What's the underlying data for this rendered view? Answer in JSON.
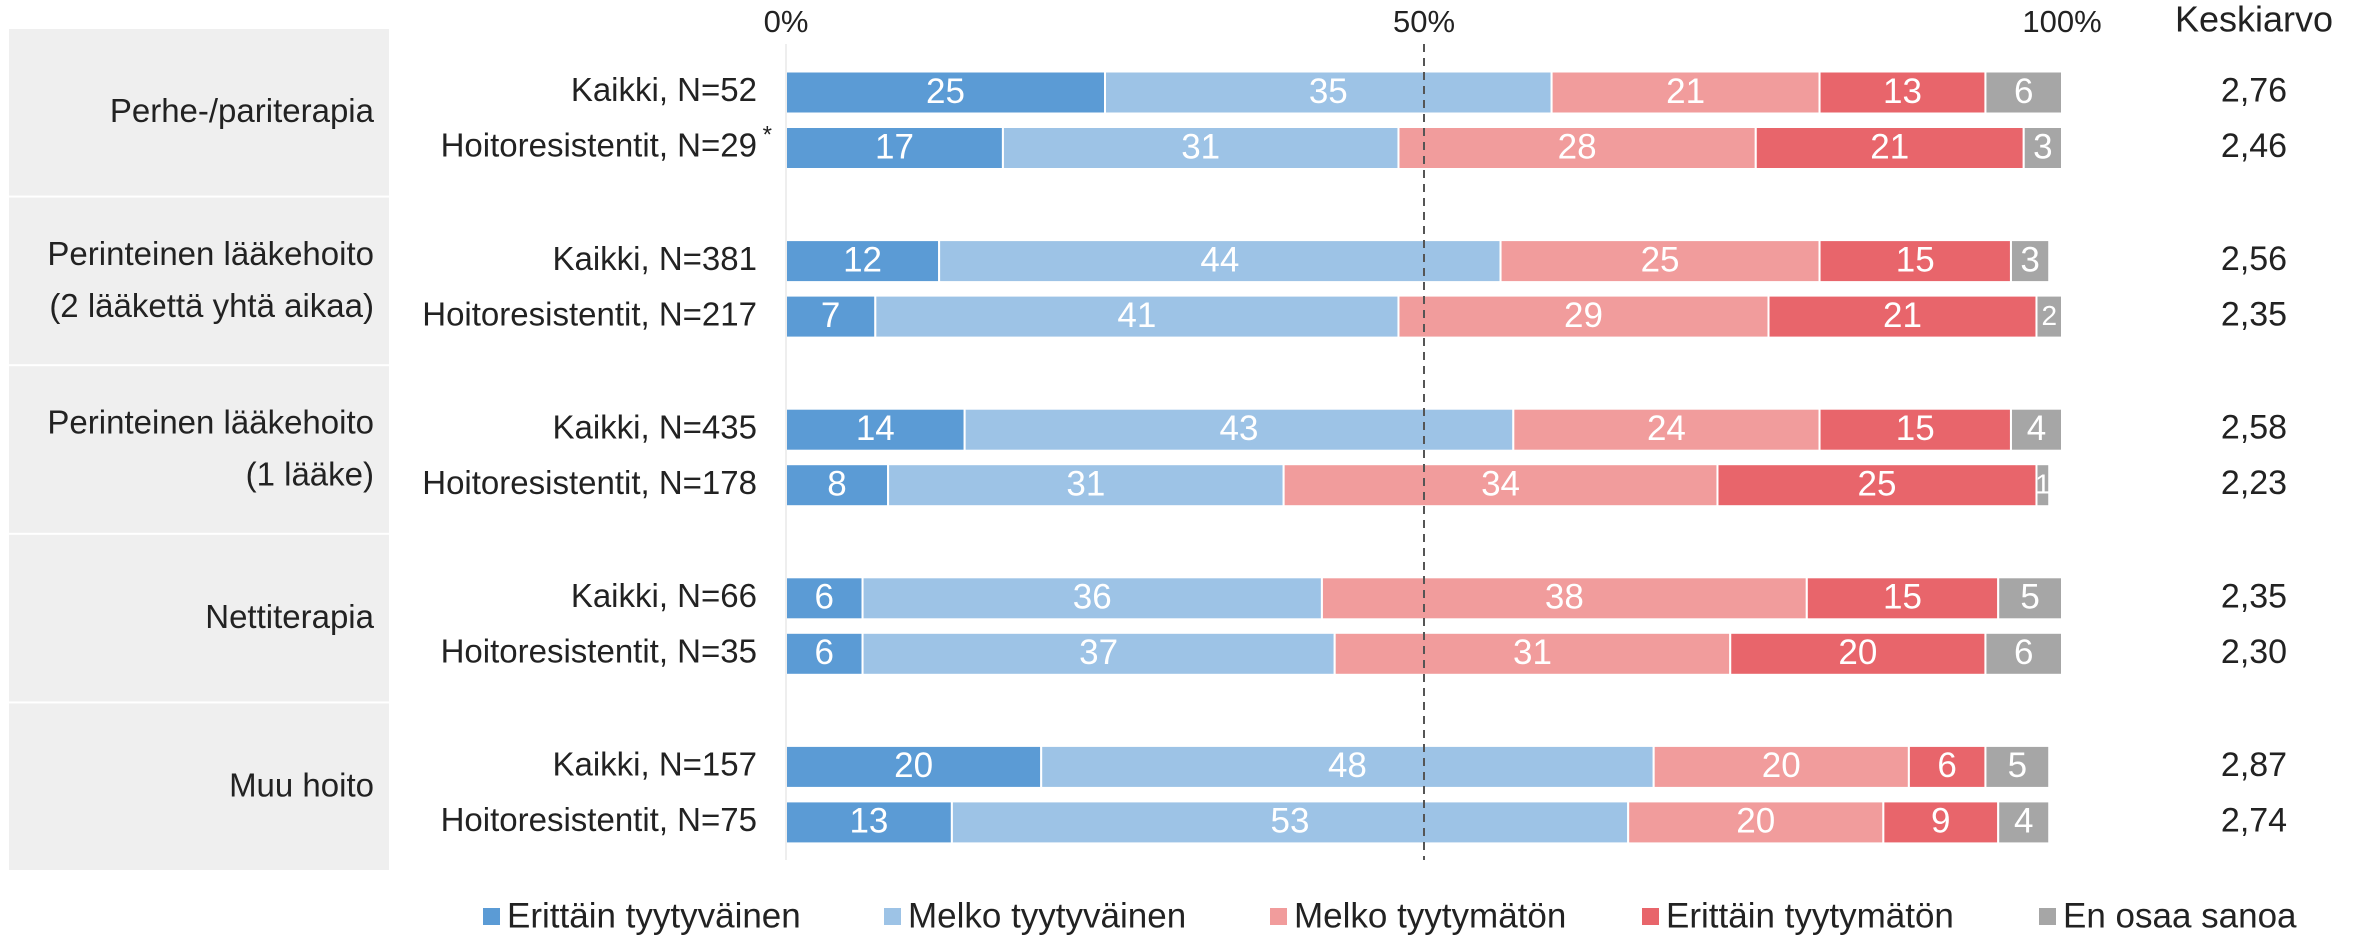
{
  "chart_data": {
    "type": "stacked_barh",
    "groups": [
      {
        "label": "Perhe-/pariterapia",
        "rows": [
          0,
          1
        ]
      },
      {
        "label": "Perinteinen lääkehoito\n(2 lääkettä yhtä aikaa)",
        "rows": [
          2,
          3
        ]
      },
      {
        "label": "Perinteinen lääkehoito\n(1 lääke)",
        "rows": [
          4,
          5
        ]
      },
      {
        "label": "Nettiterapia",
        "rows": [
          6,
          7
        ]
      },
      {
        "label": "Muu hoito",
        "rows": [
          8,
          9
        ]
      }
    ],
    "categories": [
      "Kaikki, N=52",
      "Hoitoresistentit, N=29",
      "Kaikki, N=381",
      "Hoitoresistentit, N=217",
      "Kaikki, N=435",
      "Hoitoresistentit, N=178",
      "Kaikki, N=66",
      "Hoitoresistentit, N=35",
      "Kaikki, N=157",
      "Hoitoresistentit, N=75"
    ],
    "footnote_marker": "*",
    "series": [
      {
        "name": "Erittäin tyytyväinen",
        "color": "#5b9bd5",
        "values": [
          25,
          17,
          12,
          7,
          14,
          8,
          6,
          6,
          20,
          13
        ]
      },
      {
        "name": "Melko tyytyväinen",
        "color": "#9dc3e6",
        "values": [
          35,
          31,
          44,
          41,
          43,
          31,
          36,
          37,
          48,
          53
        ]
      },
      {
        "name": "Melko tyytymätön",
        "color": "#f19c9c",
        "values": [
          21,
          28,
          25,
          29,
          24,
          34,
          38,
          31,
          20,
          20
        ]
      },
      {
        "name": "Erittäin tyytymätön",
        "color": "#e8656b",
        "values": [
          13,
          21,
          15,
          21,
          15,
          25,
          15,
          20,
          6,
          9
        ]
      },
      {
        "name": "En osaa sanoa",
        "color": "#a6a6a6",
        "values": [
          6,
          3,
          3,
          2,
          4,
          1,
          5,
          6,
          5,
          4
        ]
      }
    ],
    "mean": {
      "title": "Keskiarvo",
      "values": [
        2.76,
        2.46,
        2.56,
        2.35,
        2.58,
        2.23,
        2.35,
        2.3,
        2.87,
        2.74
      ],
      "value_labels": [
        "2,76",
        "2,46",
        "2,56",
        "2,35",
        "2,58",
        "2,23",
        "2,35",
        "2,30",
        "2,87",
        "2,74"
      ]
    },
    "xlim": [
      0,
      100
    ],
    "xticks": [
      {
        "value": 0,
        "label": "0%"
      },
      {
        "value": 50,
        "label": "50%"
      },
      {
        "value": 100,
        "label": "100%"
      }
    ],
    "reference_line": 50
  }
}
